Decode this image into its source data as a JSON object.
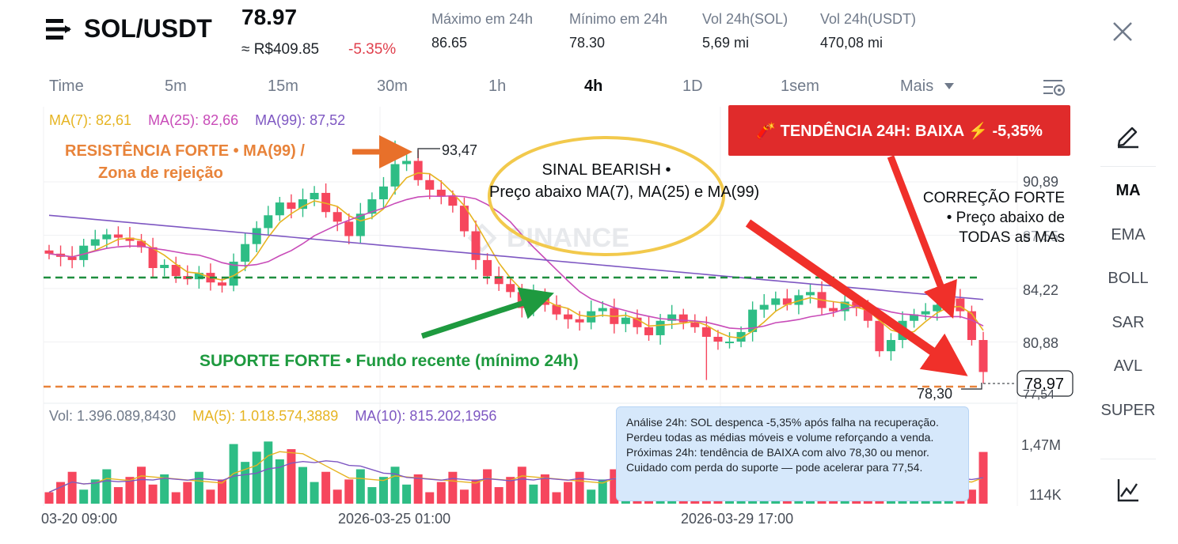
{
  "header": {
    "pair": "SOL/USDT",
    "price": "78.97",
    "brl_price": "≈ R$409.85",
    "change": "-5.35%",
    "stats": [
      {
        "label": "Máximo em 24h",
        "value": "86.65"
      },
      {
        "label": "Mínimo em 24h",
        "value": "78.30"
      },
      {
        "label": "Vol 24h(SOL)",
        "value": "5,69 mi"
      },
      {
        "label": "Vol 24h(USDT)",
        "value": "470,08 mi"
      }
    ]
  },
  "timeframes": {
    "items": [
      "Time",
      "5m",
      "15m",
      "30m",
      "1h",
      "4h",
      "1D",
      "1sem",
      "Mais"
    ],
    "active": "4h"
  },
  "sidebar": {
    "items": [
      "MA",
      "EMA",
      "BOLL",
      "SAR",
      "AVL",
      "SUPER"
    ],
    "active": "MA"
  },
  "chart": {
    "ma_legend": {
      "ma7": "MA(7): 82,61",
      "ma25": "MA(25): 82,66",
      "ma99": "MA(99): 87,52"
    },
    "y_labels": [
      "90,89",
      "87,55",
      "84,22",
      "80,88",
      "77,54"
    ],
    "current_price_label": "78,97",
    "high_marker": "93,47",
    "low_marker": "78,30",
    "watermark": "BINANCE",
    "volume_legend": {
      "vol": "Vol: 1.396.089,8430",
      "ma5": "MA(5): 1.018.574,3889",
      "ma10": "MA(10): 815.202,1956"
    },
    "volume_labels": [
      "1,47M",
      "114K"
    ],
    "x_labels": [
      "03-20 09:00",
      "2026-03-25 01:00",
      "2026-03-29 17:00"
    ],
    "colors": {
      "up": "#2ebd85",
      "down": "#f6465d",
      "ma7": "#e6b422",
      "ma25": "#c84bb8",
      "ma99": "#7e57c2"
    }
  },
  "annotations": {
    "resistance_line1": "RESISTÊNCIA FORTE • MA(99) /",
    "resistance_line2": "Zona de rejeição",
    "bearish_line1": "SINAL BEARISH •",
    "bearish_line2": "Preço abaixo MA(7), MA(25) e MA(99)",
    "support": "SUPORTE FORTE • Fundo recente (mínimo 24h)",
    "correction_line1": "CORREÇÃO FORTE",
    "correction_line2": "• Preço abaixo de",
    "correction_line3": "TODAS as MAs",
    "trend_banner": "🧨 TENDÊNCIA 24H: BAIXA ⚡ -5,35%",
    "analysis": "Análise 24h: SOL despenca -5,35% após falha na recuperação. Perdeu todas as médias móveis e volume reforçando a venda. Próximas 24h: tendência de BAIXA com alvo 78,30 ou menor. Cuidado com perda do suporte — pode acelerar para 77,54."
  }
}
